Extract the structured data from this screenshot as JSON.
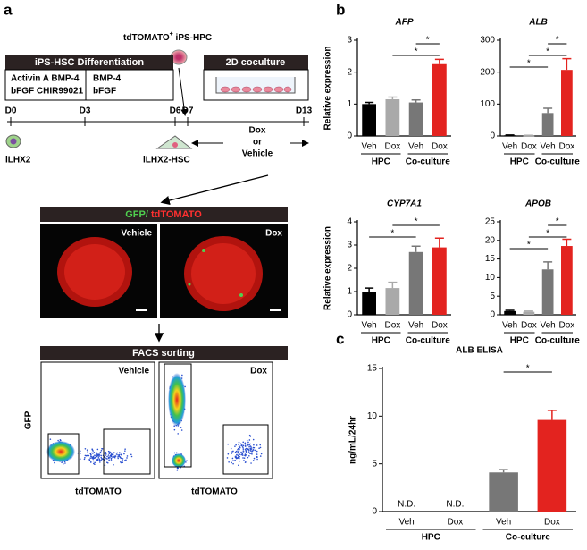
{
  "panel_a": {
    "label": "a",
    "cell_label": [
      "tdTOMATO",
      "+",
      " iPS-HPC"
    ],
    "diff_box": {
      "title": "iPS-HSC Differentiation",
      "items": [
        "Activin A BMP-4",
        "BMP-4",
        "bFGF CHIR99021",
        "bFGF"
      ]
    },
    "coculture_box": {
      "title": "2D coculture"
    },
    "timeline": [
      "D0",
      "D3",
      "D6",
      "D7",
      "D13"
    ],
    "start_cell": "iLHX2",
    "hsc_cell": "iLHX2-HSC",
    "treatment": [
      "Dox",
      "or",
      "Vehicle"
    ],
    "imaging": {
      "header": [
        "GFP/",
        " tdTOMATO"
      ],
      "panels": [
        "Vehicle",
        "Dox"
      ]
    },
    "facs": {
      "header": "FACS sorting",
      "panels": [
        "Vehicle",
        "Dox"
      ],
      "ylabel": "GFP",
      "xlabel": "tdTOMATO"
    }
  },
  "panel_b": {
    "label": "b"
  },
  "panel_c": {
    "label": "c"
  },
  "chart_data": [
    {
      "type": "bar",
      "title": "AFP",
      "ylabel": "Relative expression",
      "categories": [
        "Veh",
        "Dox",
        "Veh",
        "Dox"
      ],
      "groups": [
        "HPC",
        "Co-culture"
      ],
      "values": [
        1.0,
        1.15,
        1.05,
        2.25
      ],
      "errors": [
        0.05,
        0.07,
        0.08,
        0.15
      ],
      "colors": [
        "#000000",
        "#a9a9a9",
        "#777777",
        "#e3231f"
      ],
      "ylim": [
        0,
        3
      ],
      "yticks": [
        0,
        1,
        2,
        3
      ],
      "comparisons": [
        {
          "pair": [
            2,
            3
          ],
          "label": "*"
        },
        {
          "pair": [
            1,
            3
          ],
          "label": "*"
        }
      ]
    },
    {
      "type": "bar",
      "title": "ALB",
      "categories": [
        "Veh",
        "Dox",
        "Veh",
        "Dox"
      ],
      "groups": [
        "HPC",
        "Co-culture"
      ],
      "values": [
        2,
        1,
        72,
        207
      ],
      "errors": [
        1,
        1,
        15,
        35
      ],
      "colors": [
        "#000000",
        "#a9a9a9",
        "#777777",
        "#e3231f"
      ],
      "ylim": [
        0,
        300
      ],
      "yticks": [
        0,
        100,
        200,
        300
      ],
      "comparisons": [
        {
          "pair": [
            2,
            3
          ],
          "label": "*"
        },
        {
          "pair": [
            1,
            3
          ],
          "label": "*"
        },
        {
          "pair": [
            0,
            2
          ],
          "label": "*"
        }
      ]
    },
    {
      "type": "bar",
      "title": "CYP7A1",
      "ylabel": "Relative expression",
      "categories": [
        "Veh",
        "Dox",
        "Veh",
        "Dox"
      ],
      "groups": [
        "HPC",
        "Co-culture"
      ],
      "values": [
        1.0,
        1.15,
        2.7,
        2.9
      ],
      "errors": [
        0.15,
        0.25,
        0.25,
        0.4
      ],
      "colors": [
        "#000000",
        "#a9a9a9",
        "#777777",
        "#e3231f"
      ],
      "ylim": [
        0,
        4
      ],
      "yticks": [
        0,
        1,
        2,
        3,
        4
      ],
      "comparisons": [
        {
          "pair": [
            1,
            3
          ],
          "label": "*"
        },
        {
          "pair": [
            0,
            2
          ],
          "label": "*"
        }
      ]
    },
    {
      "type": "bar",
      "title": "APOB",
      "categories": [
        "Veh",
        "Dox",
        "Veh",
        "Dox"
      ],
      "groups": [
        "HPC",
        "Co-culture"
      ],
      "values": [
        1.0,
        0.8,
        12.2,
        18.5
      ],
      "errors": [
        0.2,
        0.2,
        2,
        1.8
      ],
      "colors": [
        "#000000",
        "#a9a9a9",
        "#777777",
        "#e3231f"
      ],
      "ylim": [
        0,
        25
      ],
      "yticks": [
        0,
        5,
        10,
        15,
        20,
        25
      ],
      "comparisons": [
        {
          "pair": [
            2,
            3
          ],
          "label": "*"
        },
        {
          "pair": [
            1,
            3
          ],
          "label": "*"
        },
        {
          "pair": [
            0,
            2
          ],
          "label": "*"
        }
      ]
    },
    {
      "type": "bar",
      "title": "ALB ELISA",
      "ylabel": "ng/mL/24hr",
      "categories": [
        "Veh",
        "Dox",
        "Veh",
        "Dox"
      ],
      "groups": [
        "HPC",
        "Co-culture"
      ],
      "values": [
        null,
        null,
        4.1,
        9.6
      ],
      "value_labels": [
        "N.D.",
        "N.D.",
        null,
        null
      ],
      "errors": [
        null,
        null,
        0.3,
        1.0
      ],
      "colors": [
        "#000000",
        "#a9a9a9",
        "#777777",
        "#e3231f"
      ],
      "ylim": [
        0,
        15
      ],
      "yticks": [
        0,
        5,
        10,
        15
      ],
      "comparisons": [
        {
          "pair": [
            2,
            3
          ],
          "label": "*"
        }
      ]
    }
  ]
}
